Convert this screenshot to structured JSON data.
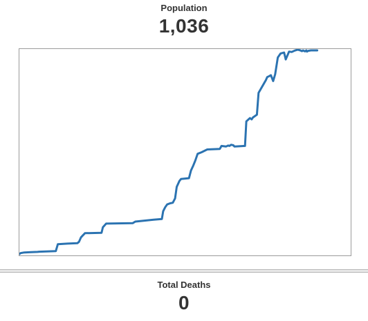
{
  "population": {
    "label": "Population",
    "value": "1,036"
  },
  "deaths": {
    "label": "Total Deaths",
    "value": "0"
  },
  "colors": {
    "line": "#2b73b1",
    "text": "#333333",
    "border": "#9a9a9a"
  },
  "chart_data": {
    "type": "line",
    "title": "",
    "xlabel": "",
    "ylabel": "",
    "grid": false,
    "legend": "none",
    "xlim": [
      0,
      100
    ],
    "ylim": [
      0,
      1036
    ],
    "series": [
      {
        "x": [
          0,
          0.4,
          1.5,
          3.5,
          5.5,
          6,
          11,
          11.6,
          14.5,
          17.5,
          18,
          18.6,
          19.8,
          24.8,
          25.2,
          26.2,
          34.2,
          35,
          40.5,
          43,
          43.4,
          44,
          44.6,
          45.5,
          46.3,
          47,
          47.5,
          48.3,
          48.8,
          51.2,
          51.8,
          52.5,
          53.1,
          53.8,
          55,
          56.7,
          60.5,
          61,
          62.4,
          63,
          63.4,
          63.9,
          64.6,
          64.9,
          68.1,
          68.5,
          69.6,
          70.1,
          70.5,
          71.7,
          72.2,
          74.4,
          74.8,
          75.4,
          75.9,
          76.6,
          77.2,
          78,
          78.8,
          79.9,
          80.4,
          81.4,
          82.2,
          83.1,
          84,
          84.8,
          85.3,
          85.6,
          86.2,
          86.6,
          86.8,
          87.2,
          88,
          88.5,
          89.4,
          89.9
        ],
        "y": [
          0,
          5,
          8,
          10,
          11,
          12,
          15,
          50,
          53,
          55,
          62,
          85,
          106,
          108,
          136,
          155,
          157,
          165,
          175,
          178,
          218,
          238,
          252,
          258,
          261,
          283,
          342,
          372,
          382,
          386,
          425,
          451,
          475,
          510,
          518,
          532,
          535,
          550,
          547,
          552,
          550,
          556,
          553,
          547,
          550,
          675,
          692,
          685,
          695,
          709,
          820,
          885,
          900,
          905,
          910,
          880,
          915,
          1000,
          1020,
          1025,
          990,
          1030,
          1028,
          1035,
          1040,
          1036,
          1032,
          1036,
          1031,
          1036,
          1030,
          1034,
          1036,
          1036,
          1036,
          1036
        ]
      }
    ]
  }
}
